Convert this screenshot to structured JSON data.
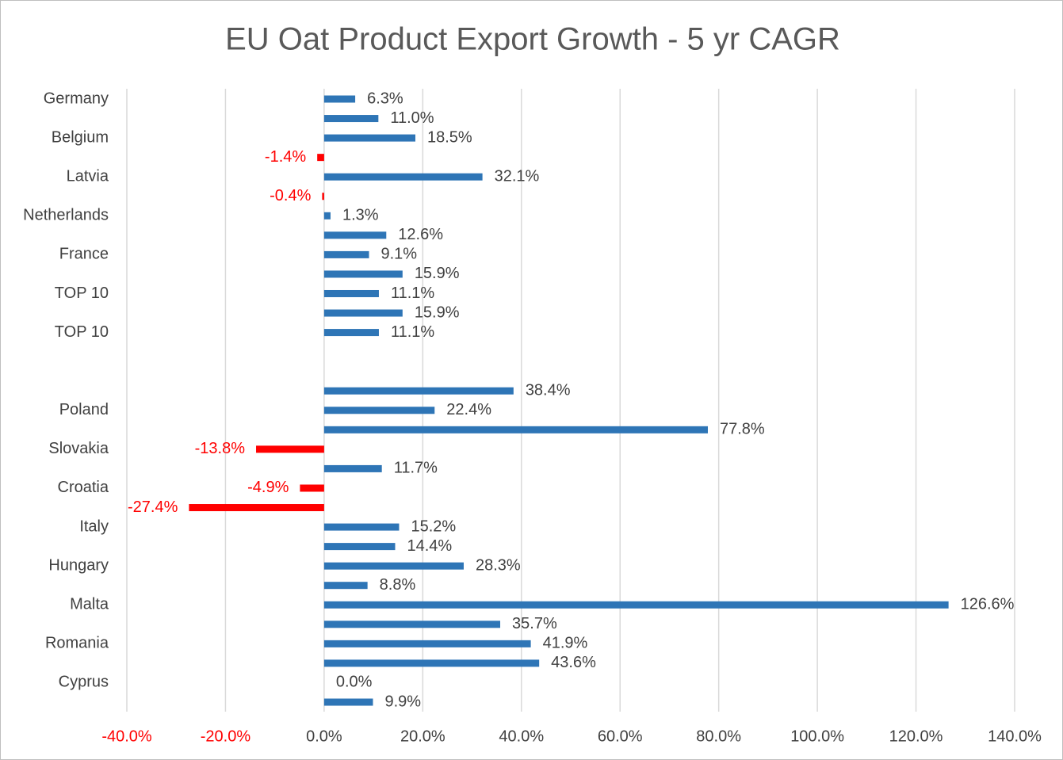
{
  "chart_data": {
    "type": "barh",
    "title": "EU Oat Product Export Growth - 5 yr CAGR",
    "categories": [
      "Germany",
      null,
      "Belgium",
      null,
      "Latvia",
      null,
      "Netherlands",
      null,
      "France",
      null,
      "TOP 10",
      null,
      "TOP 10",
      null,
      null,
      null,
      "Poland",
      null,
      "Slovakia",
      null,
      "Croatia",
      null,
      "Italy",
      null,
      "Hungary",
      null,
      "Malta",
      null,
      "Romania",
      null,
      "Cyprus",
      null
    ],
    "values": [
      6.3,
      11.0,
      18.5,
      -1.4,
      32.1,
      -0.4,
      1.3,
      12.6,
      9.1,
      15.9,
      11.1,
      15.9,
      11.1,
      null,
      null,
      38.4,
      22.4,
      77.8,
      -13.8,
      11.7,
      -4.9,
      -27.4,
      15.2,
      14.4,
      28.3,
      8.8,
      126.6,
      35.7,
      41.9,
      43.6,
      0.0,
      9.9
    ],
    "value_labels": [
      "6.3%",
      "11.0%",
      "18.5%",
      "-1.4%",
      "32.1%",
      "-0.4%",
      "1.3%",
      "12.6%",
      "9.1%",
      "15.9%",
      "11.1%",
      "15.9%",
      "11.1%",
      null,
      null,
      "38.4%",
      "22.4%",
      "77.8%",
      "-13.8%",
      "11.7%",
      "-4.9%",
      "-27.4%",
      "15.2%",
      "14.4%",
      "28.3%",
      "8.8%",
      "126.6%",
      "35.7%",
      "41.9%",
      "43.6%",
      "0.0%",
      "9.9%"
    ],
    "color": "#2e75b6",
    "negative_color": "#ff0000",
    "xlim": [
      -40,
      140
    ],
    "xticks": [
      {
        "value": -40,
        "label": "-40.0%"
      },
      {
        "value": -20,
        "label": "-20.0%"
      },
      {
        "value": 0,
        "label": "0.0%"
      },
      {
        "value": 20,
        "label": "20.0%"
      },
      {
        "value": 40,
        "label": "40.0%"
      },
      {
        "value": 60,
        "label": "60.0%"
      },
      {
        "value": 80,
        "label": "80.0%"
      },
      {
        "value": 100,
        "label": "100.0%"
      },
      {
        "value": 120,
        "label": "120.0%"
      },
      {
        "value": 140,
        "label": "140.0%"
      }
    ],
    "grid": true
  }
}
